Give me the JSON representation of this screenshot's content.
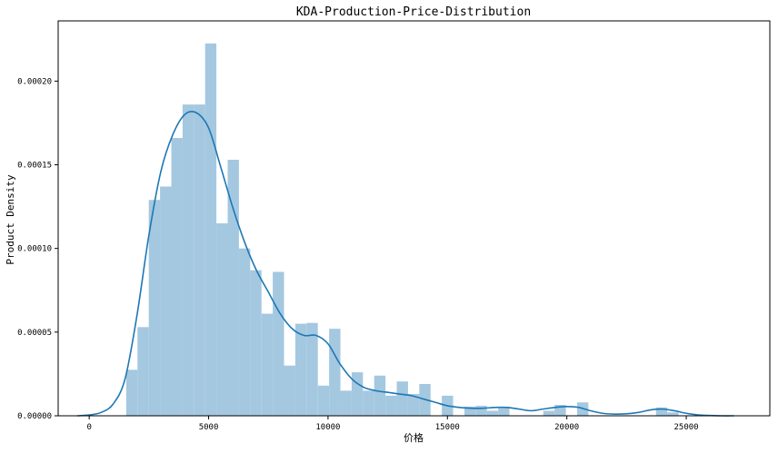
{
  "colors": {
    "bar_fill": "#a4c8e0",
    "kde_line": "#1f77b4",
    "axes": "#000000",
    "background": "#ffffff"
  },
  "chart_data": {
    "type": "bar",
    "title": "KDA-Production-Price-Distribution",
    "xlabel": "价格",
    "ylabel": "Product Density",
    "xlim": [
      -1300,
      28500
    ],
    "ylim": [
      0,
      0.000236
    ],
    "grid": false,
    "legend": "none",
    "x_ticks": [
      {
        "value": 0,
        "label": "0"
      },
      {
        "value": 5000,
        "label": "5000"
      },
      {
        "value": 10000,
        "label": "10000"
      },
      {
        "value": 15000,
        "label": "15000"
      },
      {
        "value": 20000,
        "label": "20000"
      },
      {
        "value": 25000,
        "label": "25000"
      }
    ],
    "y_ticks": [
      {
        "value": 0,
        "label": "0.00000"
      },
      {
        "value": 5e-05,
        "label": "0.00005"
      },
      {
        "value": 0.0001,
        "label": "0.00010"
      },
      {
        "value": 0.00015,
        "label": "0.00015"
      },
      {
        "value": 0.0002,
        "label": "0.00020"
      }
    ],
    "histogram": {
      "bin_start": 1550,
      "bin_width": 472,
      "values": [
        2.75e-05,
        5.3e-05,
        0.000129,
        0.000137,
        0.000166,
        0.000186,
        0.000186,
        0.0002225,
        0.000115,
        0.000153,
        0.0001,
        8.7e-05,
        6.1e-05,
        8.6e-05,
        3e-05,
        5.5e-05,
        5.55e-05,
        1.8e-05,
        5.2e-05,
        1.5e-05,
        2.6e-05,
        1.5e-05,
        2.4e-05,
        1.2e-05,
        2.05e-05,
        1.3e-05,
        1.9e-05,
        0,
        1.2e-05,
        0,
        5.5e-06,
        6e-06,
        3e-06,
        5e-06,
        0,
        0,
        0,
        3e-06,
        6.5e-06,
        0,
        8e-06,
        0,
        0,
        0,
        0,
        0,
        0,
        5e-06,
        2e-06
      ]
    },
    "kde": {
      "x": [
        -500,
        0,
        500,
        1000,
        1500,
        2000,
        2500,
        3000,
        3500,
        4000,
        4500,
        5000,
        5500,
        6000,
        6500,
        7000,
        7500,
        8000,
        8500,
        9000,
        9500,
        10000,
        10500,
        11000,
        11500,
        12000,
        12500,
        13000,
        13500,
        14000,
        14500,
        15000,
        15500,
        16000,
        16500,
        17000,
        17500,
        18000,
        18500,
        19000,
        19500,
        20000,
        20500,
        21000,
        21500,
        22000,
        22500,
        23000,
        23500,
        24000,
        24500,
        25000,
        25500,
        26000,
        26500,
        27000
      ],
      "y": [
        0,
        5e-07,
        2e-06,
        7e-06,
        2.2e-05,
        6e-05,
        0.000108,
        0.000146,
        0.000168,
        0.00018,
        0.000181,
        0.000172,
        0.000149,
        0.000125,
        0.000104,
        8.7e-05,
        7.4e-05,
        6.1e-05,
        5.2e-05,
        4.8e-05,
        4.8e-05,
        4.3e-05,
        3.1e-05,
        2.2e-05,
        1.7e-05,
        1.5e-05,
        1.4e-05,
        1.3e-05,
        1.2e-05,
        1e-05,
        8e-06,
        6e-06,
        5e-06,
        4.5e-06,
        4.5e-06,
        5e-06,
        5e-06,
        4e-06,
        3e-06,
        4e-06,
        5e-06,
        5.5e-06,
        5e-06,
        3e-06,
        1.5e-06,
        1e-06,
        1.2e-06,
        2e-06,
        3.5e-06,
        4e-06,
        3e-06,
        1.5e-06,
        5e-07,
        2e-07,
        0,
        0
      ]
    }
  }
}
